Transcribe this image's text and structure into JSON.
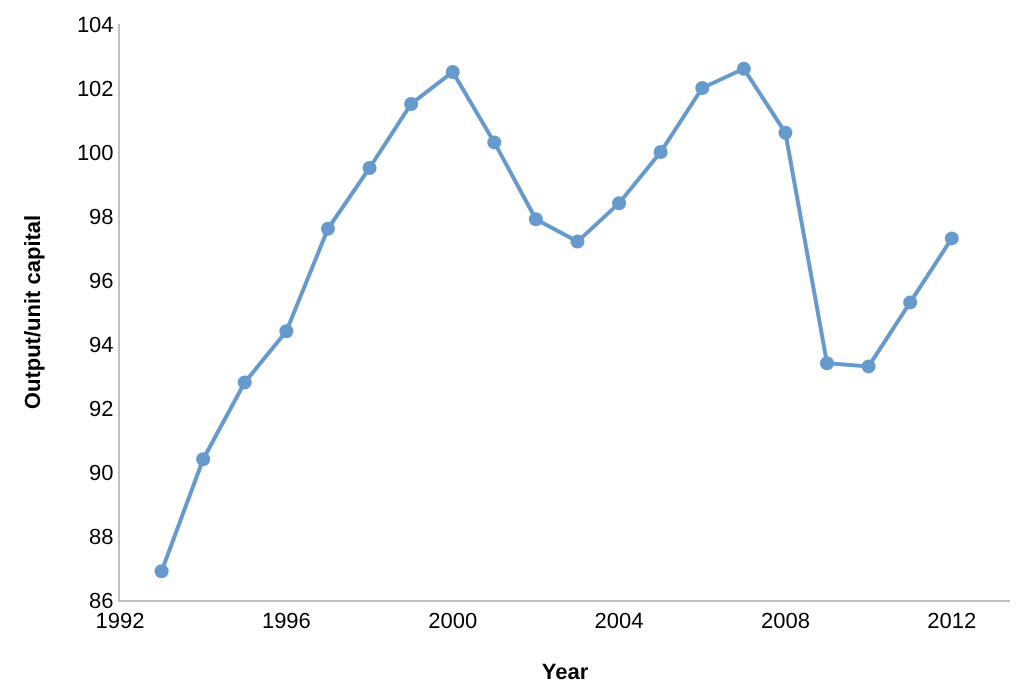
{
  "chart_data": {
    "type": "line",
    "xlabel": "Year",
    "ylabel": "Output/unit capital",
    "x": [
      1993,
      1994,
      1995,
      1996,
      1997,
      1998,
      1999,
      2000,
      2001,
      2002,
      2003,
      2004,
      2005,
      2006,
      2007,
      2008,
      2009,
      2010,
      2011,
      2012
    ],
    "series": [
      {
        "color": "#6699cc",
        "values": [
          86.9,
          90.4,
          92.8,
          94.4,
          97.6,
          99.5,
          101.5,
          102.5,
          100.3,
          97.9,
          97.2,
          98.4,
          100.0,
          102.0,
          102.6,
          100.6,
          93.4,
          93.3,
          95.3,
          97.3
        ]
      }
    ],
    "xlim": [
      1992,
      2013.4
    ],
    "xticks": [
      1992,
      1996,
      2000,
      2004,
      2008,
      2012
    ],
    "ylim": [
      86,
      104
    ],
    "yticks": [
      86,
      88,
      90,
      92,
      94,
      96,
      98,
      100,
      102,
      104
    ],
    "marker": "circle",
    "line_style": "solid"
  }
}
